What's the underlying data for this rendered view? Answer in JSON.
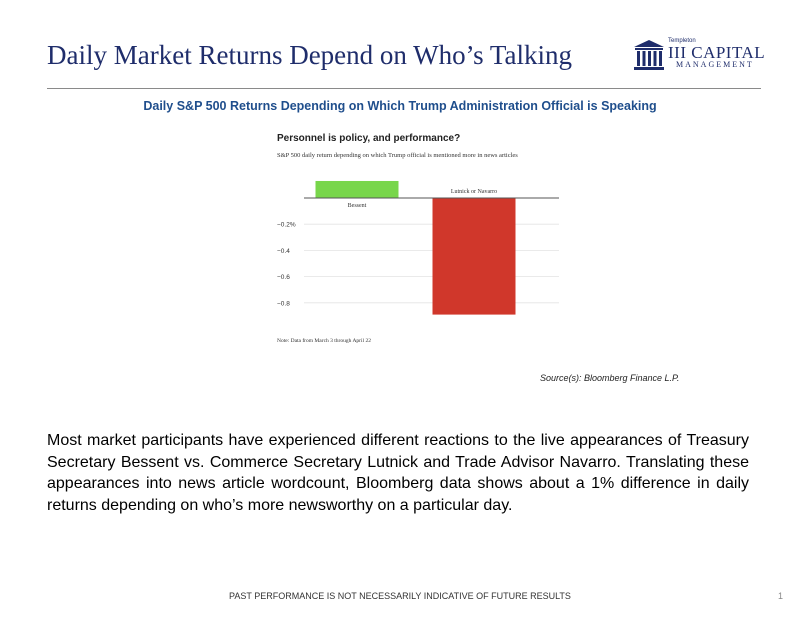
{
  "slide": {
    "title": "Daily Market Returns Depend on Who’s Talking",
    "subtitle": "Daily S&P 500 Returns Depending on Which Trump Administration Official is Speaking",
    "source": "Source(s): Bloomberg Finance L.P.",
    "body": "Most market participants have experienced different reactions to the live appearances of Treasury Secretary Bessent vs. Commerce Secretary Lutnick and Trade Advisor Navarro. Translating these appearances into news article wordcount, Bloomberg data shows about a 1% difference in daily returns depending on who’s more newsworthy on a particular day.",
    "footer": "PAST PERFORMANCE IS NOT NECESSARILY INDICATIVE OF FUTURE RESULTS",
    "page_number": "1"
  },
  "logo": {
    "small_text": "Templeton",
    "name": "III CAPITAL",
    "sub": "MANAGEMENT",
    "color": "#1f2d6b"
  },
  "chart_data": {
    "type": "bar",
    "title": "Personnel is policy, and performance?",
    "subtitle": "S&P 500 daily return depending on which Trump official is mentioned more in news articles",
    "note": "Note: Data from March 3 through April 22",
    "categories": [
      "Bessent",
      "Lutnick or Navarro"
    ],
    "values": [
      0.13,
      -0.89
    ],
    "colors": [
      "#78d64b",
      "#d0372b"
    ],
    "yticks": [
      -0.2,
      -0.4,
      -0.6,
      -0.8
    ],
    "ytick_labels": [
      "−0.2%",
      "−0.4",
      "−0.6",
      "−0.8"
    ],
    "ylim": [
      -0.9,
      0.14
    ],
    "grid": true
  }
}
